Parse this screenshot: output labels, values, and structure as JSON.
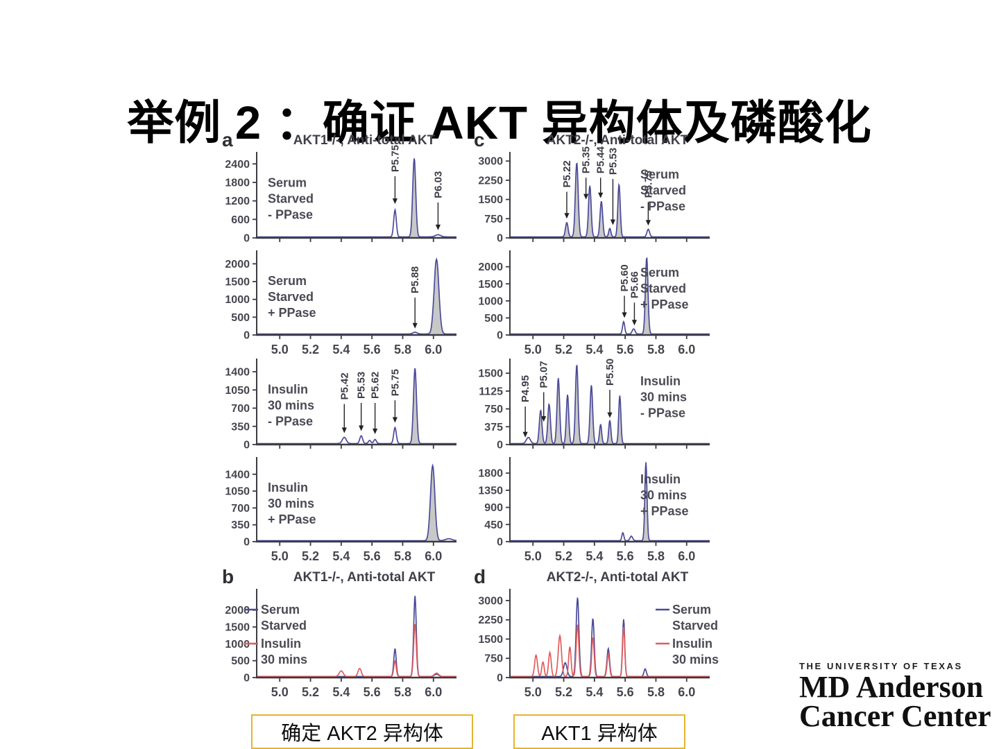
{
  "slide": {
    "title": "举例 2 ：确证 AKT 异构体及磷酸化"
  },
  "colors": {
    "blue": "#4a4a99",
    "red": "#e05c5c",
    "fill_gray": "#b5b5b5",
    "axis": "#3b3b42",
    "label": "#4a4a55"
  },
  "panels": {
    "a": {
      "letter": "a",
      "title": "AKT1-/-, Anti-total AKT"
    },
    "b": {
      "letter": "b",
      "title": "AKT1-/-, Anti-total AKT"
    },
    "c": {
      "letter": "c",
      "title": "AKT2-/-, Anti-total AKT"
    },
    "d": {
      "letter": "d",
      "title": "AKT2-/-, Anti-total AKT"
    }
  },
  "chart_data": [
    {
      "key": "a1",
      "type": "line",
      "x_range": [
        4.85,
        6.15
      ],
      "x_ticks": [
        5.0,
        5.2,
        5.4,
        5.6,
        5.8,
        6.0
      ],
      "show_x_labels": false,
      "y_ticks": [
        2400,
        1800,
        1200,
        600,
        0
      ],
      "ymax": 2700,
      "side_label": {
        "side": "left",
        "lines": [
          "Serum",
          "Starved",
          "- PPase"
        ]
      },
      "annotations": [
        {
          "label": "P5.75",
          "x": 5.75,
          "tip": 1100,
          "lab": 2000
        },
        {
          "label": "P6.03",
          "x": 6.03,
          "tip": 250,
          "lab": 1150
        }
      ],
      "series": [
        {
          "color": "blue",
          "peaks": [
            [
              5.75,
              880,
              0.012,
              0
            ],
            [
              5.875,
              2550,
              0.014,
              1
            ],
            [
              6.03,
              70,
              0.025,
              0
            ]
          ]
        }
      ]
    },
    {
      "key": "a2",
      "type": "line",
      "x_range": [
        4.85,
        6.15
      ],
      "x_ticks": [
        5.0,
        5.2,
        5.4,
        5.6,
        5.8,
        6.0
      ],
      "show_x_labels": true,
      "y_ticks": [
        2000,
        1500,
        1000,
        500,
        0
      ],
      "ymax": 2300,
      "side_label": {
        "side": "left",
        "lines": [
          "Serum",
          "Starved",
          "+ PPase"
        ]
      },
      "annotations": [
        {
          "label": "P5.88",
          "x": 5.88,
          "tip": 180,
          "lab": 1050
        }
      ],
      "series": [
        {
          "color": "blue",
          "peaks": [
            [
              5.88,
              50,
              0.02,
              0
            ],
            [
              6.02,
              2100,
              0.022,
              1
            ]
          ]
        }
      ]
    },
    {
      "key": "a3",
      "type": "line",
      "x_range": [
        4.85,
        6.15
      ],
      "x_ticks": [
        5.0,
        5.2,
        5.4,
        5.6,
        5.8,
        6.0
      ],
      "show_x_labels": false,
      "y_ticks": [
        1400,
        1050,
        700,
        350,
        0
      ],
      "ymax": 1600,
      "side_label": {
        "side": "left",
        "lines": [
          "Insulin",
          "30 mins",
          "- PPase"
        ]
      },
      "annotations": [
        {
          "label": "P5.42",
          "x": 5.42,
          "tip": 220,
          "lab": 780
        },
        {
          "label": "P5.53",
          "x": 5.53,
          "tip": 260,
          "lab": 800
        },
        {
          "label": "P5.62",
          "x": 5.62,
          "tip": 200,
          "lab": 800
        },
        {
          "label": "P5.75",
          "x": 5.75,
          "tip": 420,
          "lab": 850
        }
      ],
      "series": [
        {
          "color": "blue",
          "peaks": [
            [
              5.42,
              120,
              0.018,
              0
            ],
            [
              5.53,
              150,
              0.013,
              0
            ],
            [
              5.585,
              60,
              0.012,
              0
            ],
            [
              5.62,
              80,
              0.012,
              0
            ],
            [
              5.75,
              310,
              0.012,
              0
            ],
            [
              5.88,
              1450,
              0.014,
              1
            ]
          ]
        }
      ]
    },
    {
      "key": "a4",
      "type": "line",
      "x_range": [
        4.85,
        6.15
      ],
      "x_ticks": [
        5.0,
        5.2,
        5.4,
        5.6,
        5.8,
        6.0
      ],
      "show_x_labels": true,
      "y_ticks": [
        1400,
        1050,
        700,
        350,
        0
      ],
      "ymax": 1700,
      "side_label": {
        "side": "left",
        "lines": [
          "Insulin",
          "30 mins",
          "+ PPase"
        ]
      },
      "annotations": [],
      "series": [
        {
          "color": "blue",
          "peaks": [
            [
              5.995,
              1560,
              0.02,
              1
            ],
            [
              6.1,
              40,
              0.03,
              0
            ]
          ]
        }
      ]
    },
    {
      "key": "b",
      "type": "line",
      "x_range": [
        4.85,
        6.15
      ],
      "x_ticks": [
        5.0,
        5.2,
        5.4,
        5.6,
        5.8,
        6.0
      ],
      "show_x_labels": true,
      "y_ticks": [
        2000,
        1500,
        1000,
        500,
        0
      ],
      "ymax": 2550,
      "legend": {
        "side": "left",
        "items": [
          {
            "color": "blue",
            "lines": [
              "Serum",
              "Starved"
            ]
          },
          {
            "color": "red",
            "lines": [
              "Insulin",
              "30 mins"
            ]
          }
        ]
      },
      "annotations": [],
      "series": [
        {
          "color": "blue",
          "peaks": [
            [
              5.75,
              830,
              0.011,
              0
            ],
            [
              5.88,
              2400,
              0.012,
              0
            ],
            [
              6.02,
              70,
              0.02,
              0
            ]
          ]
        },
        {
          "color": "red",
          "peaks": [
            [
              5.4,
              170,
              0.018,
              0
            ],
            [
              5.52,
              240,
              0.015,
              0
            ],
            [
              5.75,
              460,
              0.011,
              0
            ],
            [
              5.88,
              1560,
              0.012,
              0
            ],
            [
              6.02,
              100,
              0.02,
              0
            ]
          ]
        }
      ]
    },
    {
      "key": "c1",
      "type": "line",
      "x_range": [
        4.85,
        6.15
      ],
      "x_ticks": [
        5.0,
        5.2,
        5.4,
        5.6,
        5.8,
        6.0
      ],
      "show_x_labels": false,
      "y_ticks": [
        3000,
        2250,
        1500,
        750,
        0
      ],
      "ymax": 3250,
      "side_label": {
        "side": "right",
        "lines": [
          "Serum",
          "Starved",
          "- PPase"
        ]
      },
      "annotations": [
        {
          "label": "P5.22",
          "x": 5.22,
          "tip": 750,
          "lab": 1800
        },
        {
          "label": "P5.35",
          "x": 5.345,
          "tip": 1500,
          "lab": 2350
        },
        {
          "label": "P5.44",
          "x": 5.44,
          "tip": 1550,
          "lab": 2350
        },
        {
          "label": "P5.53",
          "x": 5.52,
          "tip": 500,
          "lab": 2300
        },
        {
          "label": "P5.75",
          "x": 5.75,
          "tip": 480,
          "lab": 1400
        }
      ],
      "series": [
        {
          "color": "blue",
          "peaks": [
            [
              5.22,
              560,
              0.012,
              1
            ],
            [
              5.285,
              2900,
              0.013,
              1
            ],
            [
              5.37,
              2000,
              0.012,
              1
            ],
            [
              5.445,
              1400,
              0.012,
              1
            ],
            [
              5.5,
              330,
              0.01,
              1
            ],
            [
              5.56,
              2050,
              0.011,
              1
            ],
            [
              5.75,
              300,
              0.012,
              0
            ]
          ]
        }
      ]
    },
    {
      "key": "c2",
      "type": "line",
      "x_range": [
        4.85,
        6.15
      ],
      "x_ticks": [
        5.0,
        5.2,
        5.4,
        5.6,
        5.8,
        6.0
      ],
      "show_x_labels": true,
      "y_ticks": [
        2000,
        1500,
        1000,
        500,
        0
      ],
      "ymax": 2400,
      "side_label": {
        "side": "right",
        "lines": [
          "Serum",
          "Starved",
          "+ PPase"
        ]
      },
      "annotations": [
        {
          "label": "P5.60",
          "x": 5.595,
          "tip": 500,
          "lab": 1150
        },
        {
          "label": "P5.66",
          "x": 5.66,
          "tip": 280,
          "lab": 950
        }
      ],
      "series": [
        {
          "color": "blue",
          "peaks": [
            [
              5.59,
              360,
              0.01,
              0
            ],
            [
              5.655,
              150,
              0.013,
              0
            ],
            [
              5.74,
              2250,
              0.012,
              1
            ]
          ]
        }
      ]
    },
    {
      "key": "c3",
      "type": "line",
      "x_range": [
        4.85,
        6.15
      ],
      "x_ticks": [
        5.0,
        5.2,
        5.4,
        5.6,
        5.8,
        6.0
      ],
      "show_x_labels": false,
      "y_ticks": [
        1500,
        1125,
        750,
        375,
        0
      ],
      "ymax": 1750,
      "side_label": {
        "side": "right",
        "lines": [
          "Insulin",
          "30 mins",
          "- PPase"
        ]
      },
      "annotations": [
        {
          "label": "P4.95",
          "x": 4.95,
          "tip": 150,
          "lab": 800
        },
        {
          "label": "P5.07",
          "x": 5.07,
          "tip": 480,
          "lab": 1100
        },
        {
          "label": "P5.50",
          "x": 5.5,
          "tip": 560,
          "lab": 1150
        }
      ],
      "series": [
        {
          "color": "blue",
          "peaks": [
            [
              4.97,
              130,
              0.018,
              0
            ],
            [
              5.05,
              700,
              0.012,
              1
            ],
            [
              5.105,
              830,
              0.012,
              1
            ],
            [
              5.165,
              1380,
              0.012,
              1
            ],
            [
              5.225,
              1030,
              0.011,
              1
            ],
            [
              5.285,
              1660,
              0.012,
              1
            ],
            [
              5.38,
              1230,
              0.012,
              1
            ],
            [
              5.44,
              400,
              0.01,
              1
            ],
            [
              5.5,
              490,
              0.01,
              1
            ],
            [
              5.565,
              1010,
              0.01,
              1
            ]
          ]
        }
      ]
    },
    {
      "key": "c4",
      "type": "line",
      "x_range": [
        4.85,
        6.15
      ],
      "x_ticks": [
        5.0,
        5.2,
        5.4,
        5.6,
        5.8,
        6.0
      ],
      "show_x_labels": true,
      "y_ticks": [
        1800,
        1350,
        900,
        450,
        0
      ],
      "ymax": 2150,
      "side_label": {
        "side": "right",
        "lines": [
          "Insulin",
          "30 mins",
          "+ PPase"
        ]
      },
      "annotations": [],
      "series": [
        {
          "color": "blue",
          "peaks": [
            [
              5.585,
              210,
              0.009,
              0
            ],
            [
              5.64,
              120,
              0.012,
              0
            ],
            [
              5.735,
              2060,
              0.01,
              1
            ]
          ]
        }
      ]
    },
    {
      "key": "d",
      "type": "line",
      "x_range": [
        4.85,
        6.15
      ],
      "x_ticks": [
        5.0,
        5.2,
        5.4,
        5.6,
        5.8,
        6.0
      ],
      "show_x_labels": true,
      "y_ticks": [
        3000,
        2250,
        1500,
        750,
        0
      ],
      "ymax": 3350,
      "legend": {
        "side": "right",
        "items": [
          {
            "color": "blue",
            "lines": [
              "Serum",
              "Starved"
            ]
          },
          {
            "color": "red",
            "lines": [
              "Insulin",
              "30 mins"
            ]
          }
        ]
      },
      "annotations": [],
      "series": [
        {
          "color": "blue",
          "peaks": [
            [
              5.21,
              540,
              0.016,
              0
            ],
            [
              5.29,
              3080,
              0.013,
              0
            ],
            [
              5.39,
              2260,
              0.012,
              0
            ],
            [
              5.49,
              1090,
              0.012,
              0
            ],
            [
              5.59,
              2230,
              0.01,
              0
            ],
            [
              5.73,
              300,
              0.011,
              0
            ]
          ]
        },
        {
          "color": "red",
          "peaks": [
            [
              5.02,
              830,
              0.013,
              0
            ],
            [
              5.065,
              570,
              0.011,
              0
            ],
            [
              5.11,
              940,
              0.012,
              0
            ],
            [
              5.175,
              1590,
              0.015,
              0
            ],
            [
              5.24,
              1160,
              0.011,
              0
            ],
            [
              5.29,
              2020,
              0.012,
              0
            ],
            [
              5.39,
              1520,
              0.011,
              0
            ],
            [
              5.49,
              880,
              0.011,
              0
            ],
            [
              5.59,
              1930,
              0.01,
              0
            ]
          ]
        }
      ]
    }
  ],
  "callouts": [
    {
      "text": "确定 AKT2 异构体"
    },
    {
      "text": "AKT1 异构体"
    }
  ],
  "logo": {
    "university": "THE UNIVERSITY OF TEXAS",
    "name": "MD Anderson",
    "cancer": "Cancer",
    "center": " Center"
  }
}
